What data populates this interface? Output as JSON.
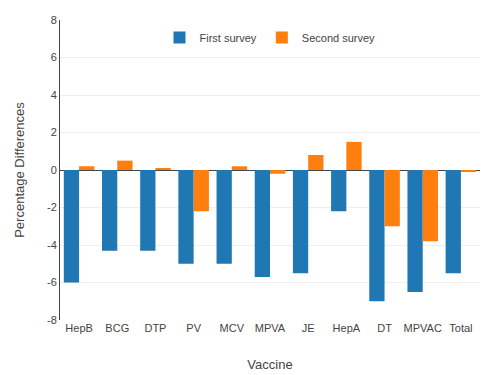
{
  "chart_data": {
    "type": "bar",
    "categories": [
      "HepB",
      "BCG",
      "DTP",
      "PV",
      "MCV",
      "MPVA",
      "JE",
      "HepA",
      "DT",
      "MPVAC",
      "Total"
    ],
    "series": [
      {
        "name": "First survey",
        "values": [
          -6.0,
          -4.3,
          -4.3,
          -5.0,
          -5.0,
          -5.7,
          -5.5,
          -2.2,
          -7.0,
          -6.5,
          -5.5
        ]
      },
      {
        "name": "Second survey",
        "values": [
          0.2,
          0.5,
          0.1,
          -2.2,
          0.2,
          -0.2,
          0.8,
          1.5,
          -3.0,
          -3.8,
          -0.1
        ]
      }
    ],
    "xlabel": "Vaccine",
    "ylabel": "Percentage Differences",
    "ylim": [
      -8,
      8
    ],
    "yticks": [
      -8,
      -6,
      -4,
      -2,
      0,
      2,
      4,
      6,
      8
    ],
    "grid": true,
    "legend": "upper center"
  }
}
